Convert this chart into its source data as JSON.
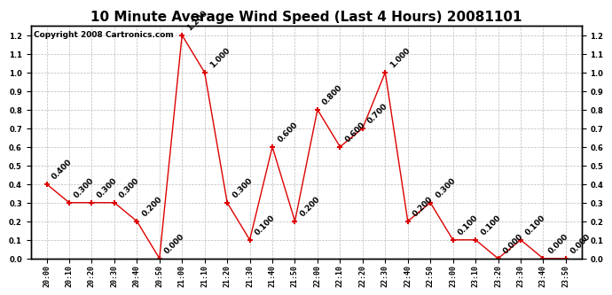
{
  "title": "10 Minute Average Wind Speed (Last 4 Hours) 20081101",
  "copyright": "Copyright 2008 Cartronics.com",
  "x_labels": [
    "20:00",
    "20:10",
    "20:20",
    "20:30",
    "20:40",
    "20:50",
    "21:00",
    "21:10",
    "21:20",
    "21:30",
    "21:40",
    "21:50",
    "22:00",
    "22:10",
    "22:20",
    "22:30",
    "22:40",
    "22:50",
    "23:00",
    "23:10",
    "23:20",
    "23:30",
    "23:40",
    "23:50"
  ],
  "y_values": [
    0.4,
    0.3,
    0.3,
    0.3,
    0.2,
    0.0,
    1.2,
    1.0,
    0.3,
    0.1,
    0.6,
    0.2,
    0.8,
    0.6,
    0.7,
    1.0,
    0.2,
    0.3,
    0.1,
    0.1,
    0.0,
    0.1,
    0.0,
    0.0
  ],
  "line_color": "#dd0000",
  "marker_color": "#dd0000",
  "background_color": "#ffffff",
  "grid_color": "#bbbbbb",
  "ylim": [
    0.0,
    1.25
  ],
  "yticks_left": [
    0.0,
    0.1,
    0.2,
    0.3,
    0.4,
    0.5,
    0.6,
    0.7,
    0.8,
    0.9,
    1.0,
    1.1,
    1.2
  ],
  "title_fontsize": 11,
  "copyright_fontsize": 6.5,
  "label_fontsize": 6,
  "annotation_fontsize": 6.5
}
